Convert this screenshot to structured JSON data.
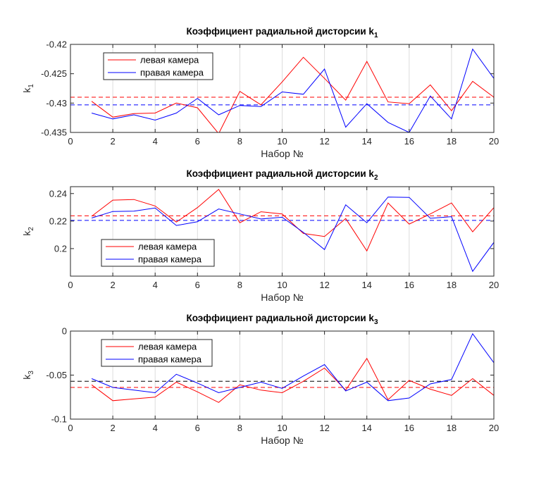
{
  "figure": {
    "background": "#ffffff"
  },
  "chart_data": [
    {
      "type": "line",
      "title": "Коэффициент радиальной дисторсии k",
      "title_sub": "1",
      "xlabel": "Набор №",
      "ylabel": "k",
      "ylabel_sub": "1",
      "xlim": [
        0,
        20
      ],
      "ylim": [
        -0.435,
        -0.42
      ],
      "xticks": [
        0,
        2,
        4,
        6,
        8,
        10,
        12,
        14,
        16,
        18,
        20
      ],
      "xtick_labels": [
        "0",
        "2",
        "4",
        "6",
        "8",
        "10",
        "12",
        "14",
        "16",
        "18",
        "20"
      ],
      "yticks": [
        -0.435,
        -0.43,
        -0.425,
        -0.42
      ],
      "ytick_labels": [
        "-0.435",
        "-0.43",
        "-0.425",
        "-0.42"
      ],
      "grid": "vertical",
      "legend_position": "top-left",
      "x": [
        1,
        2,
        3,
        4,
        5,
        6,
        7,
        8,
        9,
        10,
        11,
        12,
        13,
        14,
        15,
        16,
        17,
        18,
        19,
        20
      ],
      "series": [
        {
          "name": "левая камера",
          "color": "#ff0000",
          "values": [
            -0.4297,
            -0.4324,
            -0.4318,
            -0.4317,
            -0.43,
            -0.4308,
            -0.4352,
            -0.428,
            -0.4303,
            -0.4264,
            -0.4222,
            -0.4258,
            -0.4295,
            -0.4229,
            -0.4298,
            -0.4301,
            -0.4269,
            -0.4313,
            -0.4263,
            -0.429
          ],
          "mean": -0.429,
          "mean_color": "#ff0000"
        },
        {
          "name": "правая камера",
          "color": "#0000ff",
          "values": [
            -0.4317,
            -0.4327,
            -0.432,
            -0.4329,
            -0.4317,
            -0.4292,
            -0.432,
            -0.4304,
            -0.4306,
            -0.4281,
            -0.4285,
            -0.4242,
            -0.4341,
            -0.4301,
            -0.4333,
            -0.435,
            -0.4288,
            -0.4327,
            -0.4208,
            -0.4258
          ],
          "mean": -0.4303,
          "mean_color": "#0000ff"
        }
      ]
    },
    {
      "type": "line",
      "title": "Коэффициент радиальной дисторсии k",
      "title_sub": "2",
      "xlabel": "Набор №",
      "ylabel": "k",
      "ylabel_sub": "2",
      "xlim": [
        0,
        20
      ],
      "ylim": [
        0.18,
        0.245
      ],
      "xticks": [
        0,
        2,
        4,
        6,
        8,
        10,
        12,
        14,
        16,
        18,
        20
      ],
      "xtick_labels": [
        "0",
        "2",
        "4",
        "6",
        "8",
        "10",
        "12",
        "14",
        "16",
        "18",
        "20"
      ],
      "yticks": [
        0.2,
        0.22,
        0.24
      ],
      "ytick_labels": [
        "0.2",
        "0.22",
        "0.24"
      ],
      "grid": "vertical",
      "legend_position": "bottom-left",
      "x": [
        1,
        2,
        3,
        4,
        5,
        6,
        7,
        8,
        9,
        10,
        11,
        12,
        13,
        14,
        15,
        16,
        17,
        18,
        19,
        20
      ],
      "series": [
        {
          "name": "левая камера",
          "color": "#ff0000",
          "values": [
            0.2235,
            0.2352,
            0.2357,
            0.231,
            0.2193,
            0.2298,
            0.243,
            0.2188,
            0.2268,
            0.2252,
            0.211,
            0.2088,
            0.2218,
            0.1983,
            0.2332,
            0.2178,
            0.2252,
            0.2332,
            0.2122,
            0.2298
          ],
          "mean": 0.2238,
          "mean_color": "#ff0000"
        },
        {
          "name": "правая камера",
          "color": "#0000ff",
          "values": [
            0.2222,
            0.227,
            0.2272,
            0.2295,
            0.2168,
            0.2195,
            0.2288,
            0.2252,
            0.2215,
            0.2228,
            0.2118,
            0.1993,
            0.2318,
            0.2188,
            0.2375,
            0.2372,
            0.222,
            0.2232,
            0.1835,
            0.2045
          ],
          "mean": 0.2205,
          "mean_color": "#0000ff"
        }
      ]
    },
    {
      "type": "line",
      "title": "Коэффициент радиальной дисторсии k",
      "title_sub": "3",
      "xlabel": "Набор №",
      "ylabel": "k",
      "ylabel_sub": "3",
      "xlim": [
        0,
        20
      ],
      "ylim": [
        -0.1,
        0
      ],
      "xticks": [
        0,
        2,
        4,
        6,
        8,
        10,
        12,
        14,
        16,
        18,
        20
      ],
      "xtick_labels": [
        "0",
        "2",
        "4",
        "6",
        "8",
        "10",
        "12",
        "14",
        "16",
        "18",
        "20"
      ],
      "yticks": [
        -0.1,
        -0.05,
        0
      ],
      "ytick_labels": [
        "-0.1",
        "-0.05",
        "0"
      ],
      "grid": "vertical",
      "legend_position": "top-left",
      "x": [
        1,
        2,
        3,
        4,
        5,
        6,
        7,
        8,
        9,
        10,
        11,
        12,
        13,
        14,
        15,
        16,
        17,
        18,
        19,
        20
      ],
      "series": [
        {
          "name": "левая камера",
          "color": "#ff0000",
          "values": [
            -0.061,
            -0.079,
            -0.077,
            -0.075,
            -0.058,
            -0.069,
            -0.081,
            -0.061,
            -0.067,
            -0.07,
            -0.057,
            -0.042,
            -0.067,
            -0.031,
            -0.078,
            -0.056,
            -0.066,
            -0.073,
            -0.054,
            -0.073
          ],
          "mean": -0.064,
          "mean_color": "#ff0000"
        },
        {
          "name": "правая камера",
          "color": "#0000ff",
          "values": [
            -0.054,
            -0.064,
            -0.067,
            -0.07,
            -0.049,
            -0.059,
            -0.07,
            -0.064,
            -0.058,
            -0.065,
            -0.051,
            -0.038,
            -0.068,
            -0.058,
            -0.079,
            -0.076,
            -0.06,
            -0.055,
            -0.003,
            -0.036
          ],
          "mean": -0.057,
          "mean_color": "#000000"
        }
      ]
    }
  ]
}
